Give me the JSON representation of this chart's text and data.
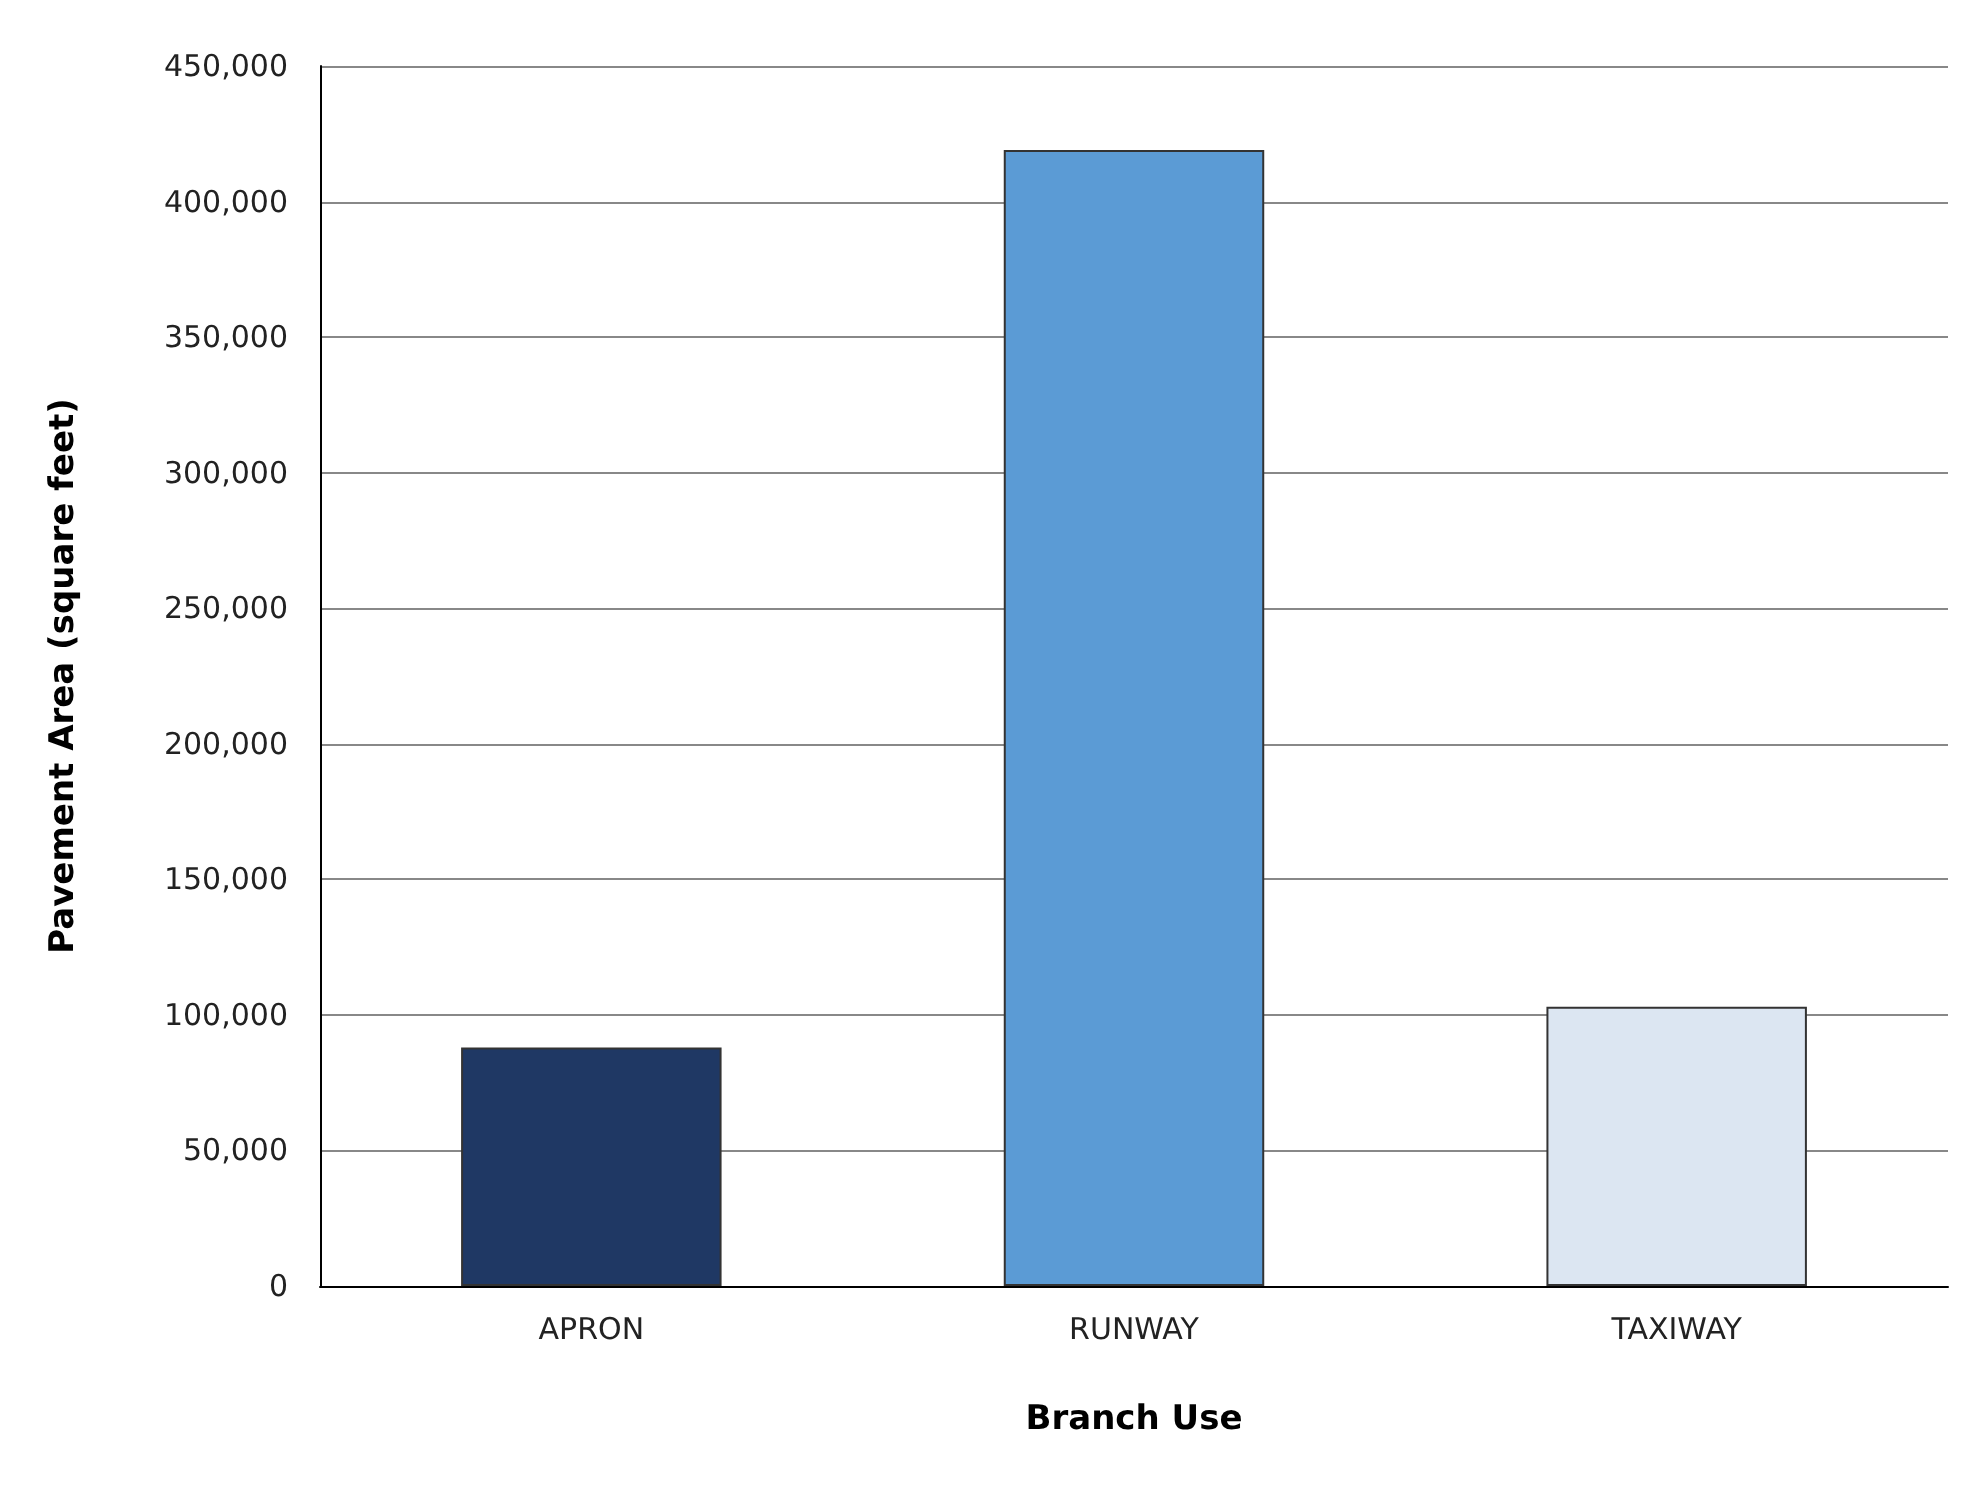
{
  "chart_data": {
    "type": "bar",
    "xlabel": "Branch Use",
    "ylabel": "Pavement Area (square feet)",
    "categories": [
      "APRON",
      "RUNWAY",
      "TAXIWAY"
    ],
    "values": [
      88000,
      419000,
      103000
    ],
    "colors": [
      "#1f3864",
      "#5b9bd5",
      "#dce6f2"
    ],
    "ylim": [
      0,
      450000
    ],
    "yticks": [
      0,
      {
        "value": 50000,
        "label": "50,000"
      },
      {
        "value": 100000,
        "label": "100,000"
      },
      {
        "value": 150000,
        "label": "150,000"
      },
      {
        "value": 200000,
        "label": "200,000"
      },
      {
        "value": 250000,
        "label": "250,000"
      },
      {
        "value": 300000,
        "label": "300,000"
      },
      {
        "value": 350000,
        "label": "350,000"
      },
      {
        "value": 400000,
        "label": "400,000"
      },
      {
        "value": 450000,
        "label": "450,000"
      }
    ],
    "grid": "y"
  }
}
